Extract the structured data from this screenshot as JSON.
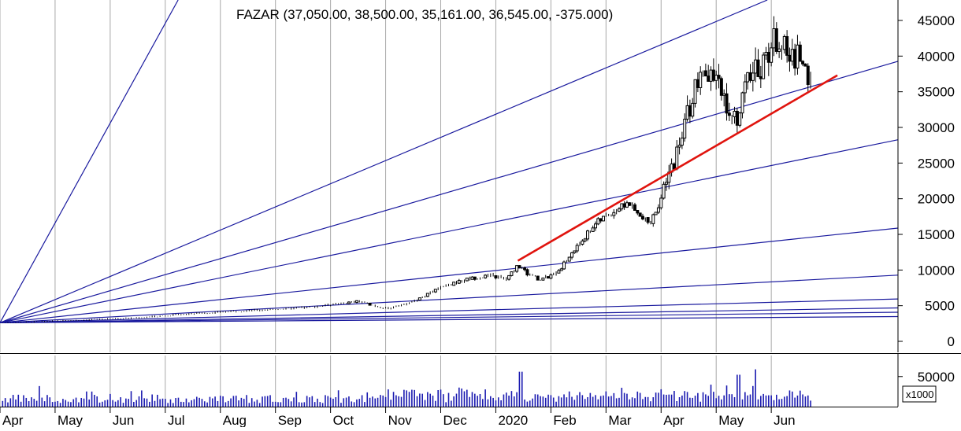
{
  "chart_data": {
    "type": "candlestick",
    "symbol": "FAZAR",
    "title": "FAZAR (37,050.00, 38,500.00, 35,161.00, 36,545.00, -375.000)",
    "last": {
      "open": 37050,
      "high": 38500,
      "low": 35161,
      "close": 36545,
      "change": -375
    },
    "price_axis": {
      "ylim": [
        0,
        47000
      ],
      "ticks": [
        0,
        5000,
        10000,
        15000,
        20000,
        25000,
        30000,
        35000,
        40000,
        45000
      ]
    },
    "volume_axis": {
      "ticks": [
        50000
      ],
      "unit_label": "x1000",
      "ylim": [
        0,
        85000
      ]
    },
    "x_axis": {
      "labels": [
        "Apr",
        "May",
        "Jun",
        "Jul",
        "Aug",
        "Sep",
        "Oct",
        "Nov",
        "Dec",
        "2020",
        "Feb",
        "Mar",
        "Apr",
        "May",
        "Jun"
      ],
      "label_months": [
        0,
        1,
        2,
        3,
        4,
        5,
        6,
        7,
        8,
        9,
        10,
        11,
        12,
        13,
        14
      ],
      "range_months": [
        -0.5,
        15.8
      ]
    },
    "price_anchors": [
      [
        -0.5,
        2600
      ],
      [
        0,
        2700
      ],
      [
        1,
        3000
      ],
      [
        2,
        3300
      ],
      [
        3,
        3900
      ],
      [
        4,
        4300
      ],
      [
        5,
        4700
      ],
      [
        5.7,
        5300
      ],
      [
        6,
        5600
      ],
      [
        6.5,
        4600
      ],
      [
        7,
        5600
      ],
      [
        7.5,
        7500
      ],
      [
        8,
        8800
      ],
      [
        8.4,
        9200
      ],
      [
        8.7,
        8700
      ],
      [
        8.9,
        10700
      ],
      [
        9.1,
        9300
      ],
      [
        9.3,
        8700
      ],
      [
        9.5,
        9100
      ],
      [
        9.7,
        10500
      ],
      [
        10,
        13500
      ],
      [
        10.3,
        16500
      ],
      [
        10.6,
        18000
      ],
      [
        10.9,
        19500
      ],
      [
        11.1,
        17500
      ],
      [
        11.3,
        16500
      ],
      [
        11.5,
        20000
      ],
      [
        11.7,
        24500
      ],
      [
        11.85,
        28000
      ],
      [
        12,
        32500
      ],
      [
        12.15,
        36000
      ],
      [
        12.3,
        37000
      ],
      [
        12.5,
        36000
      ],
      [
        12.7,
        33500
      ],
      [
        12.85,
        31000
      ],
      [
        13,
        35000
      ],
      [
        13.15,
        37500
      ],
      [
        13.3,
        38500
      ],
      [
        13.5,
        41500
      ],
      [
        13.65,
        43000
      ],
      [
        13.8,
        39500
      ],
      [
        14,
        40500
      ],
      [
        14.15,
        37500
      ],
      [
        14.25,
        36545
      ]
    ],
    "fan_lines": {
      "origin": {
        "month": -0.5,
        "price": 2600
      },
      "slopes_per_month": [
        14000,
        3250,
        2250,
        1575,
        815,
        410,
        205,
        128,
        91,
        53.5
      ]
    },
    "trendline": {
      "from": {
        "month": 8.9,
        "price": 11300
      },
      "to": {
        "month": 14.7,
        "price": 37300
      }
    }
  }
}
